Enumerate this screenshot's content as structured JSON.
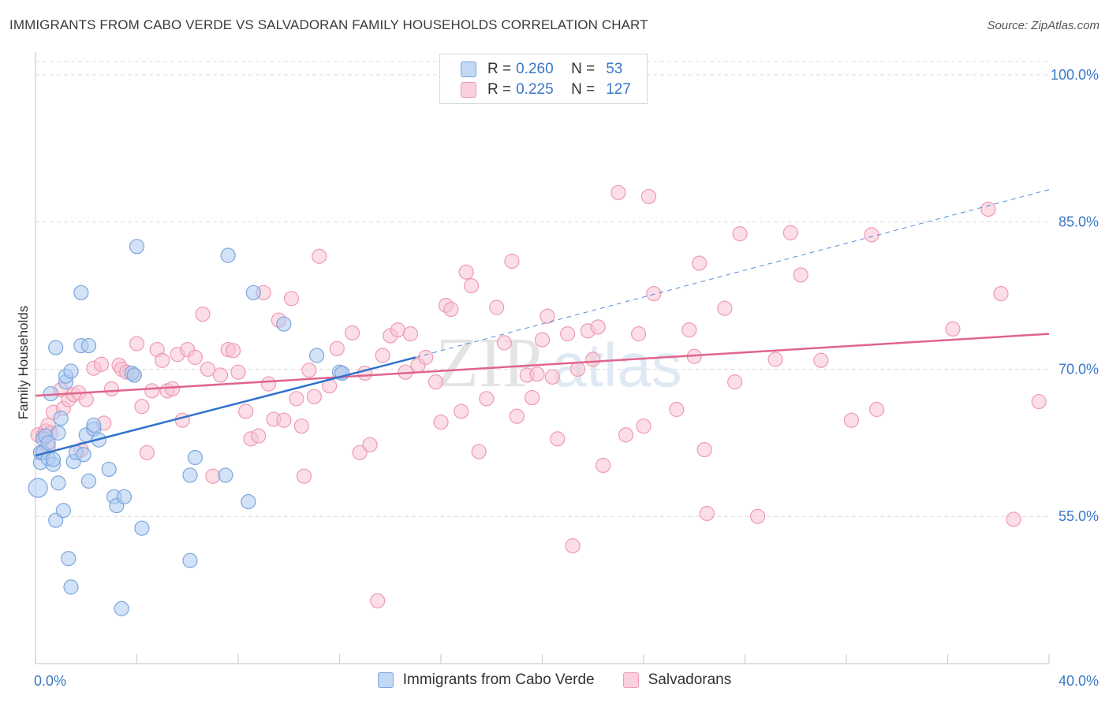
{
  "title": "IMMIGRANTS FROM CABO VERDE VS SALVADORAN FAMILY HOUSEHOLDS CORRELATION CHART",
  "source": "Source: ZipAtlas.com",
  "watermark": {
    "zip": "ZIP",
    "atlas": "atlas"
  },
  "legend_top": [
    {
      "r_label": "R =",
      "r_value": "0.260",
      "n_label": "N =",
      "n_value": "53"
    },
    {
      "r_label": "R =",
      "r_value": "0.225",
      "n_label": "N =",
      "n_value": "127"
    }
  ],
  "legend_bottom": [
    "Immigrants from Cabo Verde",
    "Salvadorans"
  ],
  "colors": {
    "blue_fill": "#aecbf0",
    "blue_stroke": "#7aa7de",
    "blue_line": "#2f72cc",
    "pink_fill": "#f7c3d2",
    "pink_stroke": "#ee9ab4",
    "pink_line": "#e0648c",
    "grid": "#dcdcdc",
    "axis_label": "#3a78c8"
  },
  "chart_data": {
    "type": "scatter",
    "title": "IMMIGRANTS FROM CABO VERDE VS SALVADORAN FAMILY HOUSEHOLDS CORRELATION CHART",
    "xlabel": "",
    "ylabel": "Family Households",
    "xlim": [
      0,
      40
    ],
    "ylim": [
      40,
      102
    ],
    "x_tick_labels": [
      "0.0%",
      "40.0%"
    ],
    "y_ticks": [
      55,
      70,
      85,
      100
    ],
    "y_tick_labels": [
      "55.0%",
      "70.0%",
      "85.0%",
      "100.0%"
    ],
    "grid": true,
    "series": [
      {
        "name": "Immigrants from Cabo Verde",
        "color": "blue",
        "R": 0.26,
        "N": 53,
        "trend": {
          "x0": 0.0,
          "y0": 61.2,
          "x1": 15.0,
          "y1": 71.2,
          "extend_to_x": 40.0,
          "extend_y": 88.3
        },
        "points": [
          [
            0.1,
            57.9
          ],
          [
            0.2,
            60.5
          ],
          [
            0.2,
            61.5
          ],
          [
            0.3,
            62.9
          ],
          [
            0.3,
            61.5
          ],
          [
            0.4,
            63.2
          ],
          [
            0.5,
            60.9
          ],
          [
            0.5,
            62.5
          ],
          [
            0.6,
            67.5
          ],
          [
            0.7,
            60.3
          ],
          [
            0.7,
            60.8
          ],
          [
            0.8,
            72.2
          ],
          [
            0.8,
            54.6
          ],
          [
            0.9,
            58.4
          ],
          [
            0.9,
            63.5
          ],
          [
            1.0,
            65.0
          ],
          [
            1.1,
            55.6
          ],
          [
            1.2,
            68.7
          ],
          [
            1.2,
            69.3
          ],
          [
            1.3,
            50.7
          ],
          [
            1.4,
            47.8
          ],
          [
            1.4,
            69.8
          ],
          [
            1.5,
            60.6
          ],
          [
            1.6,
            61.5
          ],
          [
            1.8,
            72.4
          ],
          [
            1.8,
            77.8
          ],
          [
            1.9,
            61.3
          ],
          [
            2.0,
            63.3
          ],
          [
            2.1,
            58.6
          ],
          [
            2.1,
            72.4
          ],
          [
            2.3,
            63.9
          ],
          [
            2.3,
            64.3
          ],
          [
            2.5,
            62.8
          ],
          [
            2.9,
            59.8
          ],
          [
            3.1,
            57.0
          ],
          [
            3.2,
            56.1
          ],
          [
            3.4,
            45.6
          ],
          [
            3.5,
            57.0
          ],
          [
            3.8,
            69.6
          ],
          [
            3.9,
            69.4
          ],
          [
            4.0,
            82.5
          ],
          [
            4.2,
            53.8
          ],
          [
            6.1,
            59.2
          ],
          [
            6.1,
            50.5
          ],
          [
            6.3,
            61.0
          ],
          [
            7.5,
            59.2
          ],
          [
            7.6,
            81.6
          ],
          [
            8.4,
            56.5
          ],
          [
            8.6,
            77.8
          ],
          [
            9.8,
            74.6
          ],
          [
            11.1,
            71.4
          ],
          [
            12.0,
            69.7
          ],
          [
            12.1,
            69.6
          ]
        ]
      },
      {
        "name": "Salvadorans",
        "color": "pink",
        "R": 0.225,
        "N": 127,
        "trend": {
          "x0": 0.0,
          "y0": 67.3,
          "x1": 40.0,
          "y1": 73.6
        },
        "points": [
          [
            0.1,
            63.3
          ],
          [
            0.2,
            61.5
          ],
          [
            0.3,
            63.2
          ],
          [
            0.4,
            63.7
          ],
          [
            0.5,
            62.1
          ],
          [
            0.5,
            64.3
          ],
          [
            0.6,
            63.5
          ],
          [
            0.7,
            65.6
          ],
          [
            1.0,
            67.9
          ],
          [
            1.1,
            66.0
          ],
          [
            1.3,
            66.9
          ],
          [
            1.5,
            67.4
          ],
          [
            1.7,
            67.6
          ],
          [
            1.8,
            61.8
          ],
          [
            2.0,
            66.9
          ],
          [
            2.3,
            70.1
          ],
          [
            2.6,
            70.5
          ],
          [
            2.7,
            64.5
          ],
          [
            3.0,
            68.0
          ],
          [
            3.3,
            70.4
          ],
          [
            3.4,
            70.0
          ],
          [
            3.6,
            69.7
          ],
          [
            3.9,
            69.4
          ],
          [
            4.0,
            72.6
          ],
          [
            4.2,
            66.2
          ],
          [
            4.4,
            61.5
          ],
          [
            4.6,
            67.8
          ],
          [
            4.8,
            72.0
          ],
          [
            5.0,
            70.9
          ],
          [
            5.2,
            67.8
          ],
          [
            5.4,
            68.0
          ],
          [
            5.6,
            71.5
          ],
          [
            5.8,
            64.8
          ],
          [
            6.0,
            72.0
          ],
          [
            6.3,
            71.2
          ],
          [
            6.6,
            75.6
          ],
          [
            6.8,
            70.0
          ],
          [
            7.0,
            59.1
          ],
          [
            7.3,
            69.4
          ],
          [
            7.6,
            72.0
          ],
          [
            7.8,
            71.9
          ],
          [
            8.0,
            69.7
          ],
          [
            8.3,
            65.7
          ],
          [
            8.5,
            62.9
          ],
          [
            8.8,
            63.2
          ],
          [
            9.0,
            77.8
          ],
          [
            9.2,
            68.5
          ],
          [
            9.4,
            64.9
          ],
          [
            9.6,
            75.0
          ],
          [
            9.8,
            64.8
          ],
          [
            10.1,
            77.2
          ],
          [
            10.3,
            67.0
          ],
          [
            10.5,
            64.2
          ],
          [
            10.6,
            59.1
          ],
          [
            10.8,
            69.9
          ],
          [
            11.0,
            67.2
          ],
          [
            11.2,
            81.5
          ],
          [
            11.6,
            68.3
          ],
          [
            11.9,
            72.1
          ],
          [
            12.1,
            69.6
          ],
          [
            12.5,
            73.7
          ],
          [
            12.8,
            61.5
          ],
          [
            13.0,
            69.6
          ],
          [
            13.2,
            62.3
          ],
          [
            13.5,
            46.4
          ],
          [
            13.7,
            71.4
          ],
          [
            14.0,
            73.4
          ],
          [
            14.3,
            74.0
          ],
          [
            14.6,
            69.7
          ],
          [
            14.8,
            73.6
          ],
          [
            15.1,
            70.4
          ],
          [
            15.4,
            71.2
          ],
          [
            15.8,
            68.7
          ],
          [
            16.0,
            64.6
          ],
          [
            16.2,
            76.5
          ],
          [
            16.4,
            76.1
          ],
          [
            16.8,
            65.7
          ],
          [
            17.0,
            79.9
          ],
          [
            17.2,
            78.5
          ],
          [
            17.5,
            61.6
          ],
          [
            17.8,
            67.0
          ],
          [
            18.2,
            76.3
          ],
          [
            18.5,
            72.7
          ],
          [
            18.8,
            81.0
          ],
          [
            19.0,
            65.2
          ],
          [
            19.4,
            69.4
          ],
          [
            19.6,
            67.1
          ],
          [
            19.8,
            69.5
          ],
          [
            20.0,
            73.0
          ],
          [
            20.2,
            75.4
          ],
          [
            20.4,
            69.2
          ],
          [
            20.6,
            62.9
          ],
          [
            21.0,
            73.6
          ],
          [
            21.2,
            52.0
          ],
          [
            21.4,
            70.0
          ],
          [
            21.8,
            73.9
          ],
          [
            22.0,
            71.0
          ],
          [
            22.2,
            74.3
          ],
          [
            22.4,
            60.2
          ],
          [
            23.0,
            88.0
          ],
          [
            23.3,
            63.3
          ],
          [
            23.8,
            73.6
          ],
          [
            24.0,
            64.2
          ],
          [
            24.2,
            87.6
          ],
          [
            24.4,
            77.7
          ],
          [
            25.3,
            65.9
          ],
          [
            25.8,
            74.0
          ],
          [
            26.0,
            71.3
          ],
          [
            26.2,
            80.8
          ],
          [
            26.4,
            61.8
          ],
          [
            26.5,
            55.3
          ],
          [
            27.2,
            76.2
          ],
          [
            27.6,
            68.7
          ],
          [
            27.8,
            83.8
          ],
          [
            28.5,
            55.0
          ],
          [
            29.2,
            71.0
          ],
          [
            29.8,
            83.9
          ],
          [
            30.2,
            79.6
          ],
          [
            31.0,
            70.9
          ],
          [
            32.2,
            64.8
          ],
          [
            33.0,
            83.7
          ],
          [
            33.2,
            65.9
          ],
          [
            36.2,
            74.1
          ],
          [
            37.6,
            86.3
          ],
          [
            38.1,
            77.7
          ],
          [
            38.6,
            54.7
          ],
          [
            39.6,
            66.7
          ]
        ]
      }
    ]
  }
}
